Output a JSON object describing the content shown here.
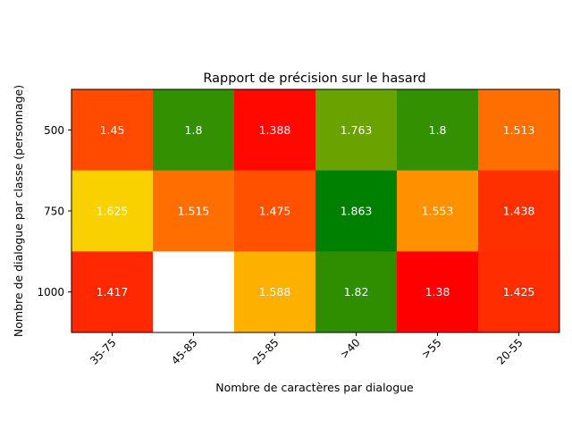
{
  "chart_data": {
    "type": "heatmap",
    "title": "Rapport de précision sur le hasard",
    "xlabel": "Nombre de caractères par dialogue",
    "ylabel": "Nombre de dialogue par classe (personnage)",
    "x_categories": [
      "35-75",
      "45-85",
      "25-85",
      ">40",
      ">55",
      "20-55"
    ],
    "y_categories": [
      "500",
      "750",
      "1000"
    ],
    "values": [
      [
        1.45,
        1.8,
        1.388,
        1.763,
        1.8,
        1.513
      ],
      [
        1.625,
        1.515,
        1.475,
        1.863,
        1.553,
        1.438
      ],
      [
        1.417,
        null,
        1.588,
        1.82,
        1.38,
        1.425
      ]
    ],
    "value_labels": [
      [
        "1.45",
        "1.8",
        "1.388",
        "1.763",
        "1.8",
        "1.513"
      ],
      [
        "1.625",
        "1.515",
        "1.475",
        "1.863",
        "1.553",
        "1.438"
      ],
      [
        "1.417",
        "",
        "1.588",
        "1.82",
        "1.38",
        "1.425"
      ]
    ],
    "cell_colors": [
      [
        "#ff4a00",
        "#339000",
        "#ff0800",
        "#6aa300",
        "#339000",
        "#ff6e00"
      ],
      [
        "#f9d000",
        "#ff6e00",
        "#ff5100",
        "#008000",
        "#ff9100",
        "#ff3000"
      ],
      [
        "#ff2800",
        "#ffffff",
        "#fdb000",
        "#2f8e00",
        "#ff0000",
        "#ff2d00"
      ]
    ],
    "grid": false,
    "legend": "none"
  }
}
